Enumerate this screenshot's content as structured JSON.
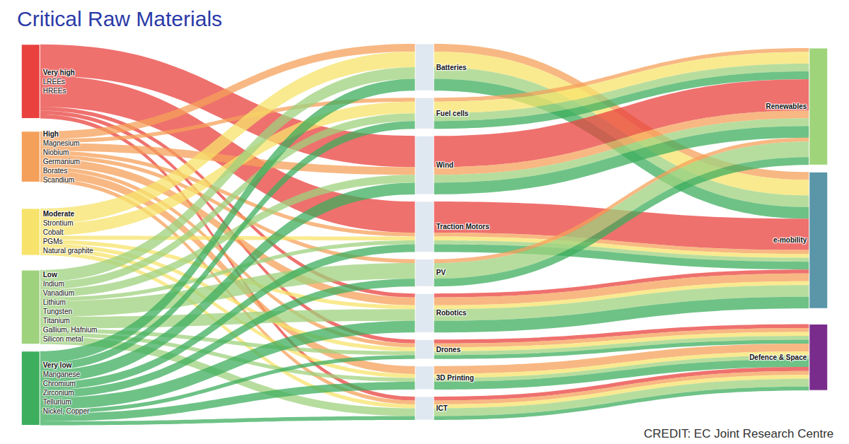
{
  "chart_data": {
    "type": "sankey",
    "title": "Critical Raw Materials",
    "annotation": "CREDIT: EC Joint Research Centre",
    "nodes": [
      {
        "label": "Very high",
        "materials": [
          "LREEs",
          "HREEs"
        ],
        "color": "#e8413e"
      },
      {
        "label": "High",
        "materials": [
          "Magnesium",
          "Niobium",
          "Germanium",
          "Borates",
          "Scandium"
        ],
        "color": "#f5a05a"
      },
      {
        "label": "Moderate",
        "materials": [
          "Strontium",
          "Cobalt",
          "PGMs",
          "Natural graphite"
        ],
        "color": "#f7e36b"
      },
      {
        "label": "Low",
        "materials": [
          "Indium",
          "Vanadium",
          "Lithium",
          "Tungsten",
          "Titanium",
          "Gallium, Hafnium",
          "Silicon metal"
        ],
        "color": "#9fd27d"
      },
      {
        "label": "Very low",
        "materials": [
          "Manganese",
          "Chromium",
          "Zirconium",
          "Tellurium",
          "Nickel, Copper"
        ],
        "color": "#3dae5d"
      },
      {
        "label": "Batteries",
        "color": "#dfe7f1"
      },
      {
        "label": "Fuel cells",
        "color": "#dfe7f1"
      },
      {
        "label": "Wind",
        "color": "#dfe7f1"
      },
      {
        "label": "Traction Motors",
        "color": "#dfe7f1"
      },
      {
        "label": "PV",
        "color": "#dfe7f1"
      },
      {
        "label": "Robotics",
        "color": "#dfe7f1"
      },
      {
        "label": "Drones",
        "color": "#dfe7f1"
      },
      {
        "label": "3D Printing",
        "color": "#dfe7f1"
      },
      {
        "label": "ICT",
        "color": "#dfe7f1"
      },
      {
        "label": "Renewables",
        "color": "#9fd47a"
      },
      {
        "label": "e-mobility",
        "color": "#5a95a8"
      },
      {
        "label": "Defence & Space",
        "color": "#7a2c8c"
      }
    ],
    "links": [
      {
        "source": "Very high",
        "target": "Wind",
        "value": 8
      },
      {
        "source": "Very high",
        "target": "Traction Motors",
        "value": 8
      },
      {
        "source": "Very high",
        "target": "Robotics",
        "value": 1
      },
      {
        "source": "Very high",
        "target": "Drones",
        "value": 1
      },
      {
        "source": "Very high",
        "target": "ICT",
        "value": 1
      },
      {
        "source": "High",
        "target": "Batteries",
        "value": 2
      },
      {
        "source": "High",
        "target": "Fuel cells",
        "value": 1
      },
      {
        "source": "High",
        "target": "Wind",
        "value": 2
      },
      {
        "source": "High",
        "target": "Traction Motors",
        "value": 1
      },
      {
        "source": "High",
        "target": "PV",
        "value": 1
      },
      {
        "source": "High",
        "target": "Robotics",
        "value": 2
      },
      {
        "source": "High",
        "target": "Drones",
        "value": 1
      },
      {
        "source": "High",
        "target": "3D Printing",
        "value": 2
      },
      {
        "source": "High",
        "target": "ICT",
        "value": 1
      },
      {
        "source": "Moderate",
        "target": "Batteries",
        "value": 4
      },
      {
        "source": "Moderate",
        "target": "Fuel cells",
        "value": 3
      },
      {
        "source": "Moderate",
        "target": "Traction Motors",
        "value": 1
      },
      {
        "source": "Moderate",
        "target": "Robotics",
        "value": 1
      },
      {
        "source": "Moderate",
        "target": "Drones",
        "value": 1
      },
      {
        "source": "Moderate",
        "target": "3D Printing",
        "value": 1
      },
      {
        "source": "Moderate",
        "target": "ICT",
        "value": 1
      },
      {
        "source": "Low",
        "target": "Batteries",
        "value": 3
      },
      {
        "source": "Low",
        "target": "Fuel cells",
        "value": 2
      },
      {
        "source": "Low",
        "target": "Wind",
        "value": 2
      },
      {
        "source": "Low",
        "target": "Traction Motors",
        "value": 1
      },
      {
        "source": "Low",
        "target": "PV",
        "value": 4
      },
      {
        "source": "Low",
        "target": "Robotics",
        "value": 3
      },
      {
        "source": "Low",
        "target": "Drones",
        "value": 1
      },
      {
        "source": "Low",
        "target": "3D Printing",
        "value": 1
      },
      {
        "source": "Low",
        "target": "ICT",
        "value": 2
      },
      {
        "source": "Very low",
        "target": "Batteries",
        "value": 3
      },
      {
        "source": "Very low",
        "target": "Fuel cells",
        "value": 2
      },
      {
        "source": "Very low",
        "target": "Wind",
        "value": 3
      },
      {
        "source": "Very low",
        "target": "Traction Motors",
        "value": 2
      },
      {
        "source": "Very low",
        "target": "PV",
        "value": 2
      },
      {
        "source": "Very low",
        "target": "Robotics",
        "value": 3
      },
      {
        "source": "Very low",
        "target": "Drones",
        "value": 1
      },
      {
        "source": "Very low",
        "target": "3D Printing",
        "value": 2
      },
      {
        "source": "Very low",
        "target": "ICT",
        "value": 1
      },
      {
        "source": "Batteries",
        "target": "e-mobility",
        "value": 2,
        "risk": "High"
      },
      {
        "source": "Batteries",
        "target": "e-mobility",
        "value": 4,
        "risk": "Moderate"
      },
      {
        "source": "Batteries",
        "target": "e-mobility",
        "value": 3,
        "risk": "Low"
      },
      {
        "source": "Batteries",
        "target": "e-mobility",
        "value": 3,
        "risk": "Very low"
      },
      {
        "source": "Fuel cells",
        "target": "Renewables",
        "value": 1,
        "risk": "High"
      },
      {
        "source": "Fuel cells",
        "target": "Renewables",
        "value": 3,
        "risk": "Moderate"
      },
      {
        "source": "Fuel cells",
        "target": "Renewables",
        "value": 2,
        "risk": "Low"
      },
      {
        "source": "Fuel cells",
        "target": "Renewables",
        "value": 2,
        "risk": "Very low"
      },
      {
        "source": "Wind",
        "target": "Renewables",
        "value": 8,
        "risk": "Very high"
      },
      {
        "source": "Wind",
        "target": "Renewables",
        "value": 2,
        "risk": "High"
      },
      {
        "source": "Wind",
        "target": "Renewables",
        "value": 2,
        "risk": "Low"
      },
      {
        "source": "Wind",
        "target": "Renewables",
        "value": 3,
        "risk": "Very low"
      },
      {
        "source": "Traction Motors",
        "target": "e-mobility",
        "value": 8,
        "risk": "Very high"
      },
      {
        "source": "Traction Motors",
        "target": "e-mobility",
        "value": 1,
        "risk": "High"
      },
      {
        "source": "Traction Motors",
        "target": "e-mobility",
        "value": 1,
        "risk": "Moderate"
      },
      {
        "source": "Traction Motors",
        "target": "e-mobility",
        "value": 1,
        "risk": "Low"
      },
      {
        "source": "Traction Motors",
        "target": "e-mobility",
        "value": 2,
        "risk": "Very low"
      },
      {
        "source": "PV",
        "target": "Renewables",
        "value": 1,
        "risk": "High"
      },
      {
        "source": "PV",
        "target": "Renewables",
        "value": 4,
        "risk": "Low"
      },
      {
        "source": "PV",
        "target": "Renewables",
        "value": 2,
        "risk": "Very low"
      },
      {
        "source": "Robotics",
        "target": "e-mobility",
        "value": 1,
        "risk": "Very high"
      },
      {
        "source": "Robotics",
        "target": "e-mobility",
        "value": 2,
        "risk": "High"
      },
      {
        "source": "Robotics",
        "target": "e-mobility",
        "value": 1,
        "risk": "Moderate"
      },
      {
        "source": "Robotics",
        "target": "e-mobility",
        "value": 3,
        "risk": "Low"
      },
      {
        "source": "Robotics",
        "target": "e-mobility",
        "value": 3,
        "risk": "Very low"
      },
      {
        "source": "Drones",
        "target": "Defence & Space",
        "value": 1,
        "risk": "Very high"
      },
      {
        "source": "Drones",
        "target": "Defence & Space",
        "value": 1,
        "risk": "High"
      },
      {
        "source": "Drones",
        "target": "Defence & Space",
        "value": 1,
        "risk": "Moderate"
      },
      {
        "source": "Drones",
        "target": "Defence & Space",
        "value": 1,
        "risk": "Low"
      },
      {
        "source": "Drones",
        "target": "Defence & Space",
        "value": 1,
        "risk": "Very low"
      },
      {
        "source": "3D Printing",
        "target": "Defence & Space",
        "value": 2,
        "risk": "High"
      },
      {
        "source": "3D Printing",
        "target": "Defence & Space",
        "value": 1,
        "risk": "Moderate"
      },
      {
        "source": "3D Printing",
        "target": "Defence & Space",
        "value": 1,
        "risk": "Low"
      },
      {
        "source": "3D Printing",
        "target": "Defence & Space",
        "value": 2,
        "risk": "Very low"
      },
      {
        "source": "ICT",
        "target": "Defence & Space",
        "value": 1,
        "risk": "Very high"
      },
      {
        "source": "ICT",
        "target": "Defence & Space",
        "value": 1,
        "risk": "High"
      },
      {
        "source": "ICT",
        "target": "Defence & Space",
        "value": 1,
        "risk": "Moderate"
      },
      {
        "source": "ICT",
        "target": "Defence & Space",
        "value": 2,
        "risk": "Low"
      },
      {
        "source": "ICT",
        "target": "Defence & Space",
        "value": 1,
        "risk": "Very low"
      }
    ]
  }
}
